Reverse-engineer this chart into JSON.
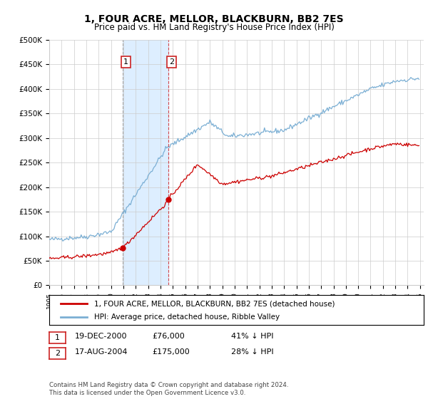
{
  "title": "1, FOUR ACRE, MELLOR, BLACKBURN, BB2 7ES",
  "subtitle": "Price paid vs. HM Land Registry's House Price Index (HPI)",
  "ylabel_ticks": [
    "£0",
    "£50K",
    "£100K",
    "£150K",
    "£200K",
    "£250K",
    "£300K",
    "£350K",
    "£400K",
    "£450K",
    "£500K"
  ],
  "ytick_values": [
    0,
    50000,
    100000,
    150000,
    200000,
    250000,
    300000,
    350000,
    400000,
    450000,
    500000
  ],
  "x_start_year": 1995,
  "x_end_year": 2025,
  "purchase1": {
    "date": "19-DEC-2000",
    "price": 76000,
    "label": "1",
    "hpi_pct": "41% ↓ HPI",
    "year": 2000.96
  },
  "purchase2": {
    "date": "17-AUG-2004",
    "price": 175000,
    "label": "2",
    "hpi_pct": "28% ↓ HPI",
    "year": 2004.625
  },
  "legend_line1": "1, FOUR ACRE, MELLOR, BLACKBURN, BB2 7ES (detached house)",
  "legend_line2": "HPI: Average price, detached house, Ribble Valley",
  "footer": "Contains HM Land Registry data © Crown copyright and database right 2024.\nThis data is licensed under the Open Government Licence v3.0.",
  "line_color_red": "#cc0000",
  "line_color_blue": "#7bafd4",
  "highlight_fill": "#ddeeff",
  "dashed_line_color": "#cc0000",
  "grid_color": "#cccccc",
  "background_color": "#ffffff"
}
